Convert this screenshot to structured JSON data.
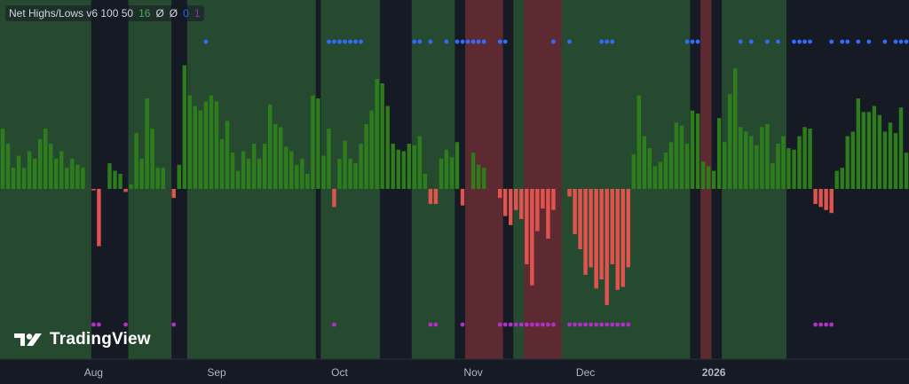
{
  "indicator": {
    "title": "Net Highs/Lows v6 100 50",
    "values": [
      "16",
      "Ø",
      "Ø",
      "0",
      "1"
    ],
    "value_colors": [
      "#4caf50",
      "#d1d4dc",
      "#d1d4dc",
      "#2962ff",
      "#9c27b0"
    ]
  },
  "brand": {
    "name": "TradingView",
    "logo_icon": "tradingview-logo-icon"
  },
  "colors": {
    "background": "#161a25",
    "bull_zone": "#264a2f",
    "bear_zone": "#5e2a31",
    "positive_bar": "#2e7d1c",
    "negative_bar": "#e0534f",
    "high_dot": "#2f6bff",
    "low_dot": "#b030c6",
    "axis_text": "#b2b5be"
  },
  "chart_data": {
    "type": "bar",
    "x_axis_labels": [
      "Aug",
      "Sep",
      "Oct",
      "Nov",
      "Dec",
      "2026"
    ],
    "label_indices": [
      17,
      40,
      63,
      88,
      109,
      133
    ],
    "ylim": [
      -100,
      100
    ],
    "grid": false,
    "zones": [
      {
        "from": 0,
        "to": 16,
        "state": "bull"
      },
      {
        "from": 17,
        "to": 23,
        "state": "neutral"
      },
      {
        "from": 24,
        "to": 31,
        "state": "bull"
      },
      {
        "from": 32,
        "to": 34,
        "state": "neutral"
      },
      {
        "from": 35,
        "to": 58,
        "state": "bull"
      },
      {
        "from": 59,
        "to": 59,
        "state": "neutral"
      },
      {
        "from": 60,
        "to": 70,
        "state": "bull"
      },
      {
        "from": 71,
        "to": 76,
        "state": "neutral"
      },
      {
        "from": 77,
        "to": 84,
        "state": "bull"
      },
      {
        "from": 85,
        "to": 86,
        "state": "neutral"
      },
      {
        "from": 87,
        "to": 93,
        "state": "bear"
      },
      {
        "from": 94,
        "to": 95,
        "state": "neutral"
      },
      {
        "from": 96,
        "to": 97,
        "state": "bull"
      },
      {
        "from": 98,
        "to": 104,
        "state": "bear"
      },
      {
        "from": 105,
        "to": 128,
        "state": "bull"
      },
      {
        "from": 129,
        "to": 130,
        "state": "neutral"
      },
      {
        "from": 131,
        "to": 132,
        "state": "bear"
      },
      {
        "from": 133,
        "to": 134,
        "state": "neutral"
      },
      {
        "from": 135,
        "to": 146,
        "state": "bull"
      }
    ],
    "values": [
      40,
      30,
      14,
      22,
      14,
      25,
      20,
      33,
      40,
      30,
      20,
      25,
      14,
      20,
      16,
      14,
      0,
      -1,
      -38,
      0,
      17,
      12,
      10,
      -2,
      3,
      37,
      20,
      60,
      40,
      14,
      14,
      0,
      -6,
      16,
      82,
      62,
      55,
      52,
      58,
      62,
      58,
      33,
      45,
      24,
      12,
      25,
      20,
      30,
      20,
      30,
      56,
      43,
      41,
      28,
      25,
      16,
      20,
      10,
      62,
      60,
      22,
      40,
      -12,
      20,
      32,
      20,
      17,
      30,
      43,
      52,
      73,
      70,
      55,
      30,
      26,
      25,
      30,
      29,
      35,
      10,
      -10,
      -10,
      20,
      26,
      21,
      31,
      -11,
      0,
      24,
      16,
      14,
      0,
      0,
      -6,
      -18,
      -24,
      -14,
      -20,
      -50,
      -64,
      -28,
      -13,
      -33,
      -14,
      0,
      0,
      -5,
      -30,
      -40,
      -57,
      -52,
      -66,
      -60,
      -77,
      -50,
      -67,
      -65,
      -52,
      23,
      62,
      35,
      27,
      15,
      18,
      24,
      31,
      44,
      42,
      30,
      52,
      50,
      18,
      15,
      12,
      47,
      31,
      63,
      80,
      41,
      38,
      35,
      29,
      41,
      43,
      17,
      30,
      35,
      27,
      26,
      35,
      41,
      40,
      -10,
      -12,
      -14,
      -16,
      12,
      14,
      35,
      38,
      60,
      51,
      51,
      55,
      49,
      38,
      44,
      37,
      54,
      24
    ],
    "high_dots": [
      38,
      61,
      62,
      63,
      64,
      65,
      66,
      67,
      77,
      78,
      80,
      83,
      85,
      86,
      87,
      88,
      89,
      90,
      93,
      94,
      103,
      106,
      112,
      113,
      114,
      128,
      129,
      130,
      138,
      140,
      143,
      145,
      148,
      149,
      150,
      151,
      155,
      157,
      158,
      160,
      162,
      165,
      167,
      168,
      169,
      170
    ],
    "low_dots": []
  }
}
